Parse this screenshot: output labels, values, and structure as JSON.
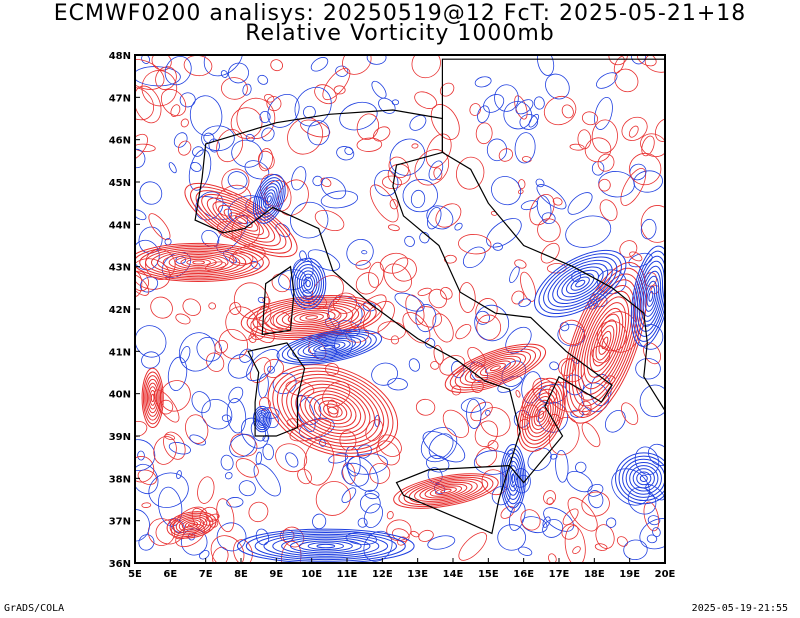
{
  "header": {
    "line1": "ECMWF0200 analisys: 20250519@12 FcT: 2025-05-21+18",
    "line2": "Relative Vorticity 1000mb"
  },
  "map": {
    "y_ticks": [
      "48N",
      "47N",
      "46N",
      "45N",
      "44N",
      "43N",
      "42N",
      "41N",
      "40N",
      "39N",
      "38N",
      "37N",
      "36N"
    ],
    "x_ticks": [
      "5E",
      "6E",
      "7E",
      "8E",
      "9E",
      "10E",
      "11E",
      "12E",
      "13E",
      "14E",
      "15E",
      "16E",
      "17E",
      "18E",
      "19E",
      "20E"
    ],
    "lon_range": [
      5,
      20
    ],
    "lat_range": [
      36,
      48
    ],
    "colors": {
      "positive": "#e83030",
      "negative": "#2040e0",
      "coast": "#000000"
    }
  },
  "footer": {
    "left": "GrADS/COLA",
    "right": "2025-05-19-21:55"
  }
}
